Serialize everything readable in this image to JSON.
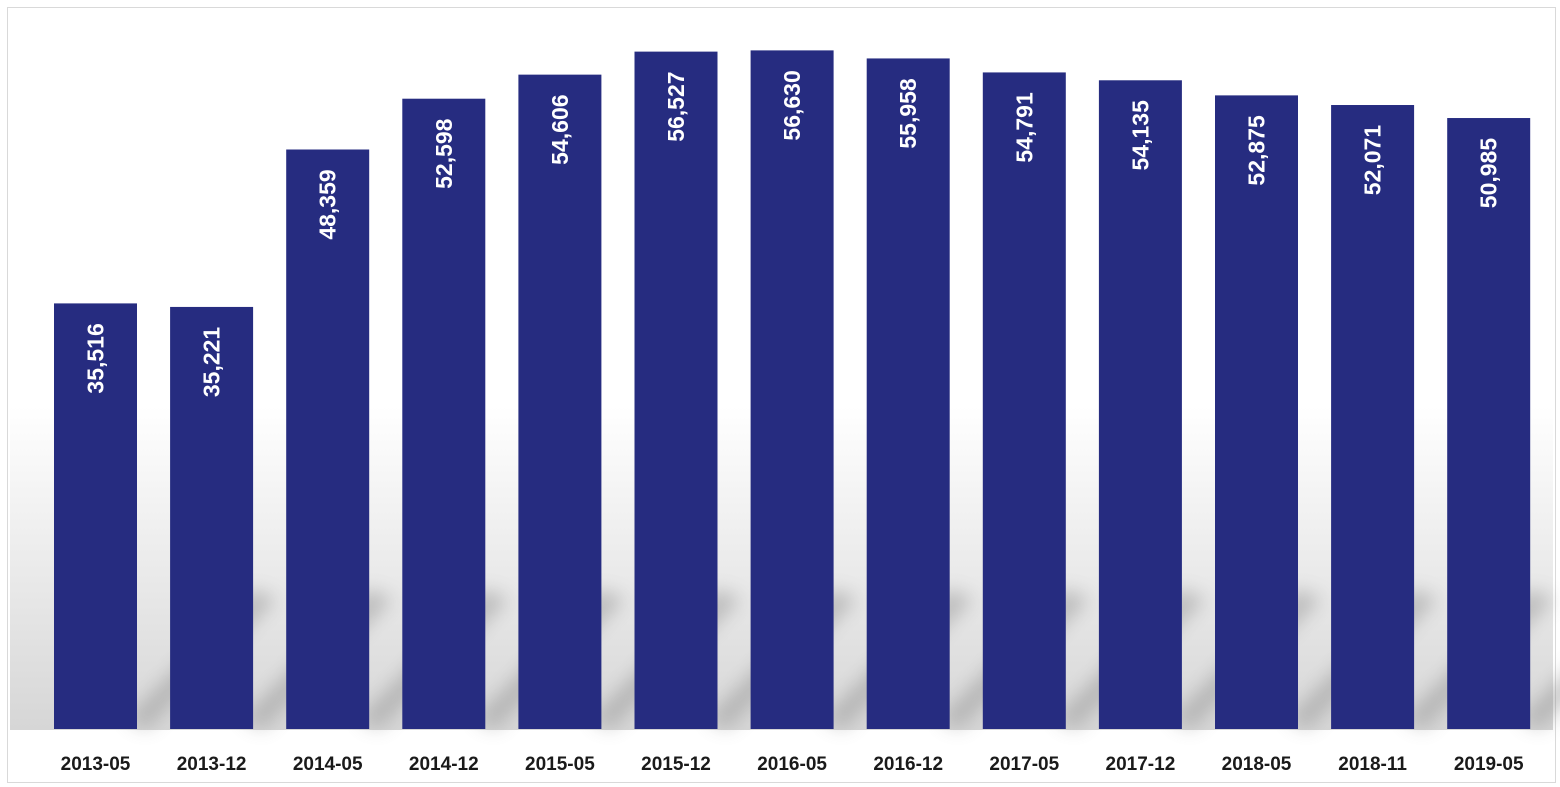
{
  "chart_data": {
    "type": "bar",
    "categories": [
      "2013-05",
      "2013-12",
      "2014-05",
      "2014-12",
      "2015-05",
      "2015-12",
      "2016-05",
      "2016-12",
      "2017-05",
      "2017-12",
      "2018-05",
      "2018-11",
      "2019-05"
    ],
    "values": [
      35516,
      35221,
      48359,
      52598,
      54606,
      56527,
      56630,
      55958,
      54791,
      54135,
      52875,
      52071,
      50985
    ],
    "value_labels": [
      "35,516",
      "35,221",
      "48,359",
      "52,598",
      "54,606",
      "56,527",
      "56,630",
      "55,958",
      "54,791",
      "54,135",
      "52,875",
      "52,071",
      "50,985"
    ],
    "title": "",
    "xlabel": "",
    "ylabel": "",
    "ylim": [
      0,
      60000
    ],
    "grid": false,
    "legend": "none",
    "bar_color": "#262c80"
  }
}
